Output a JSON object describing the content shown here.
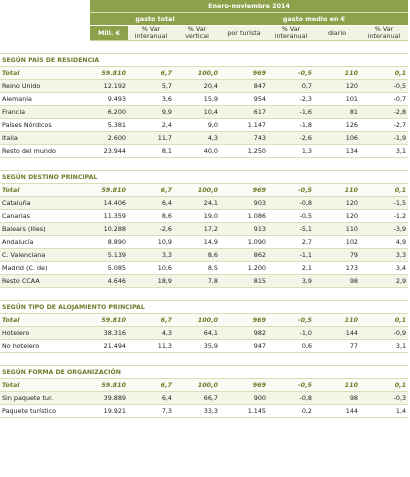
{
  "header": {
    "period": "Enero-noviembre 2014",
    "group1": "gasto total",
    "group2": "gasto medio en €",
    "cols": [
      "Mill. €",
      "% Var interanual",
      "% Var vertical",
      "por turista",
      "% Var interanual",
      "diario",
      "% Var interanual"
    ]
  },
  "sections": [
    {
      "title": "SEGÚN PAÍS DE RESIDENCIA",
      "total": [
        "Total",
        "59.810",
        "6,7",
        "100,0",
        "969",
        "-0,5",
        "110",
        "0,1"
      ],
      "rows": [
        [
          "Reino Unido",
          "12.192",
          "5,7",
          "20,4",
          "847",
          "0,7",
          "120",
          "-0,5"
        ],
        [
          "Alemania",
          "9.493",
          "3,6",
          "15,9",
          "954",
          "-2,3",
          "101",
          "-0,7"
        ],
        [
          "Francia",
          "6.200",
          "9,9",
          "10,4",
          "617",
          "-1,6",
          "81",
          "-2,8"
        ],
        [
          "Países Nórdicos",
          "5.381",
          "2,4",
          "9,0",
          "1.147",
          "-1,8",
          "126",
          "-2,7"
        ],
        [
          "Italia",
          "2.600",
          "11,7",
          "4,3",
          "743",
          "-2,6",
          "106",
          "-1,9"
        ],
        [
          "Resto del mundo",
          "23.944",
          "8,1",
          "40,0",
          "1.250",
          "1,3",
          "134",
          "3,1"
        ]
      ]
    },
    {
      "title": "SEGÚN DESTINO PRINCIPAL",
      "total": [
        "Total",
        "59.810",
        "6,7",
        "100,0",
        "969",
        "-0,5",
        "110",
        "0,1"
      ],
      "rows": [
        [
          "Cataluña",
          "14.406",
          "6,4",
          "24,1",
          "903",
          "-0,8",
          "120",
          "-1,5"
        ],
        [
          "Canarias",
          "11.359",
          "8,6",
          "19,0",
          "1.086",
          "-0,5",
          "120",
          "-1,2"
        ],
        [
          "Balears (Illes)",
          "10.288",
          "-2,6",
          "17,2",
          "913",
          "-5,1",
          "110",
          "-3,9"
        ],
        [
          "Andalucía",
          "8.890",
          "10,9",
          "14,9",
          "1.090",
          "2,7",
          "102",
          "4,9"
        ],
        [
          "C. Valenciana",
          "5.139",
          "3,3",
          "8,6",
          "862",
          "-1,1",
          "79",
          "3,3"
        ],
        [
          "Madrid (C. de)",
          "5.085",
          "10,6",
          "8,5",
          "1.200",
          "2,1",
          "173",
          "3,4"
        ],
        [
          "Resto CCAA",
          "4.646",
          "18,9",
          "7,8",
          "815",
          "3,9",
          "98",
          "2,9"
        ]
      ]
    },
    {
      "title": "SEGÚN TIPO DE ALOJAMIENTO PRINCIPAL",
      "total": [
        "Total",
        "59.810",
        "6,7",
        "100,0",
        "969",
        "-0,5",
        "110",
        "0,1"
      ],
      "rows": [
        [
          "Hotelero",
          "38.316",
          "4,3",
          "64,1",
          "982",
          "-1,0",
          "144",
          "-0,9"
        ],
        [
          "No hotelero",
          "21.494",
          "11,3",
          "35,9",
          "947",
          "0,6",
          "77",
          "3,1"
        ]
      ]
    },
    {
      "title": "SEGÚN FORMA DE ORGANIZACIÓN",
      "total": [
        "Total",
        "59.810",
        "6,7",
        "100,0",
        "969",
        "-0,5",
        "110",
        "0,1"
      ],
      "rows": [
        [
          "Sin paquete tur.",
          "39.889",
          "6,4",
          "66,7",
          "900",
          "-0,8",
          "98",
          "-0,3"
        ],
        [
          "Paquete turístico",
          "19.921",
          "7,3",
          "33,3",
          "1.145",
          "0,2",
          "144",
          "1,4"
        ]
      ]
    }
  ]
}
